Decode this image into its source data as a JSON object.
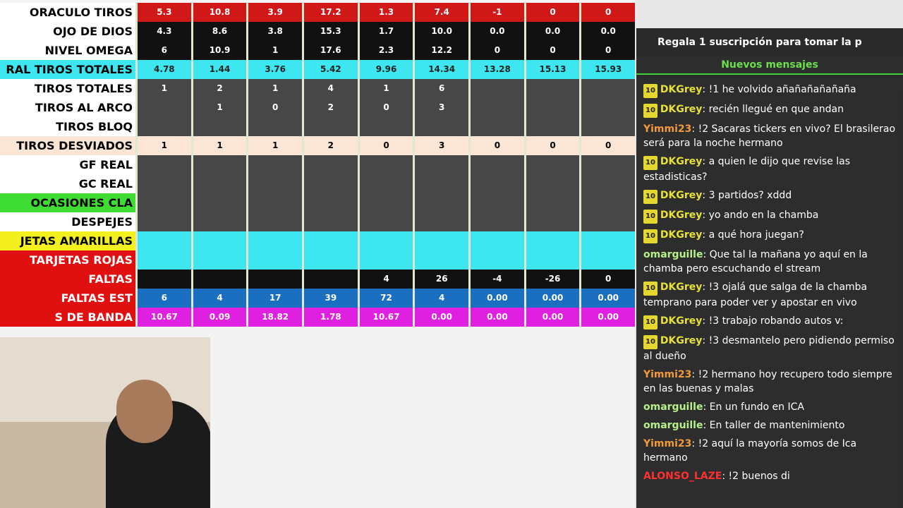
{
  "spreadsheet": {
    "columns_count": 9,
    "rows": [
      {
        "label": "ORACULO TIROS",
        "cells": [
          "5.3",
          "10.8",
          "3.9",
          "17.2",
          "1.3",
          "7.4",
          "-1",
          "0",
          "0"
        ]
      },
      {
        "label": "OJO DE DIOS",
        "cells": [
          "4.3",
          "8.6",
          "3.8",
          "15.3",
          "1.7",
          "10.0",
          "0.0",
          "0.0",
          "0.0"
        ]
      },
      {
        "label": "NIVEL OMEGA",
        "cells": [
          "6",
          "10.9",
          "1",
          "17.6",
          "2.3",
          "12.2",
          "0",
          "0",
          "0"
        ]
      },
      {
        "label": "RAL TIROS TOTALES",
        "cells": [
          "4.78",
          "1.44",
          "3.76",
          "5.42",
          "9.96",
          "14.34",
          "13.28",
          "15.13",
          "15.93"
        ]
      },
      {
        "label": "TIROS TOTALES",
        "cells": [
          "1",
          "2",
          "1",
          "4",
          "1",
          "6",
          null,
          null,
          null
        ]
      },
      {
        "label": "TIROS AL ARCO",
        "cells": [
          null,
          "1",
          "0",
          "2",
          "0",
          "3",
          null,
          null,
          null
        ]
      },
      {
        "label": "TIROS BLOQ",
        "cells": [
          null,
          null,
          null,
          null,
          null,
          null,
          null,
          null,
          null
        ]
      },
      {
        "label": "TIROS DESVIADOS",
        "cells": [
          "1",
          "1",
          "1",
          "2",
          "0",
          "3",
          "0",
          "0",
          "0"
        ]
      },
      {
        "label": "GF REAL",
        "cells": [
          null,
          null,
          null,
          null,
          null,
          null,
          null,
          null,
          null
        ]
      },
      {
        "label": "GC REAL",
        "cells": [
          null,
          null,
          null,
          null,
          null,
          null,
          null,
          null,
          null
        ]
      },
      {
        "label": "OCASIONES CLA",
        "cells": [
          null,
          null,
          null,
          null,
          null,
          null,
          null,
          null,
          null
        ]
      },
      {
        "label": "DESPEJES",
        "cells": [
          null,
          null,
          null,
          null,
          null,
          null,
          null,
          null,
          null
        ]
      },
      {
        "label": "JETAS AMARILLAS",
        "cells": [
          null,
          null,
          null,
          null,
          null,
          null,
          null,
          null,
          null
        ]
      },
      {
        "label": "TARJETAS ROJAS",
        "cells": [
          null,
          null,
          null,
          null,
          null,
          null,
          null,
          null,
          null
        ]
      },
      {
        "label": "FALTAS",
        "cells": [
          null,
          null,
          null,
          null,
          "4",
          "26",
          "-4",
          "-26",
          "0"
        ]
      },
      {
        "label": "FALTAS EST",
        "cells": [
          "6",
          "4",
          "17",
          "39",
          "72",
          "4",
          "0.00",
          "0.00",
          "0.00"
        ]
      },
      {
        "label": "S DE BANDA",
        "cells": [
          "10.67",
          "0.09",
          "18.82",
          "1.78",
          "10.67",
          "0.00",
          "0.00",
          "0.00",
          "0.00"
        ]
      }
    ]
  },
  "chat": {
    "banner": "Regala 1 suscripción para tomar la p",
    "new_messages": "Nuevos mensajes",
    "messages": [
      {
        "badge": "10",
        "user": "DKGrey",
        "text": "!1 he volvido añañañañañaña"
      },
      {
        "badge": "10",
        "user": "DKGrey",
        "text": "recién llegué en que andan"
      },
      {
        "badge": null,
        "user": "Yimmi23",
        "text": "!2 Sacaras tickers en vivo? El brasilerao será para la noche hermano"
      },
      {
        "badge": "10",
        "user": "DKGrey",
        "text": "a quien le dijo que revise las estadisticas?"
      },
      {
        "badge": "10",
        "user": "DKGrey",
        "text": "3 partidos? xddd"
      },
      {
        "badge": "10",
        "user": "DKGrey",
        "text": "yo ando en la chamba"
      },
      {
        "badge": "10",
        "user": "DKGrey",
        "text": "a qué hora juegan?"
      },
      {
        "badge": null,
        "user": "omarguille",
        "text": "Que tal la mañana yo aquí en la chamba pero escuchando el stream"
      },
      {
        "badge": "10",
        "user": "DKGrey",
        "text": "!3 ojalá que salga de la chamba temprano para poder ver y apostar en vivo"
      },
      {
        "badge": "10",
        "user": "DKGrey",
        "text": "!3 trabajo robando autos v:"
      },
      {
        "badge": "10",
        "user": "DKGrey",
        "text": "!3 desmantelo pero pidiendo permiso al dueño"
      },
      {
        "badge": null,
        "user": "Yimmi23",
        "text": "!2 hermano hoy recupero todo siempre en las buenas y malas"
      },
      {
        "badge": null,
        "user": "omarguille",
        "text": "En un fundo en ICA"
      },
      {
        "badge": null,
        "user": "omarguille",
        "text": "En taller de mantenimiento"
      },
      {
        "badge": null,
        "user": "Yimmi23",
        "text": "!2 aquí la mayoría somos de Ica hermano"
      },
      {
        "badge": null,
        "user": "ALONSO_LAZE",
        "text": "!2 buenos di"
      }
    ]
  }
}
